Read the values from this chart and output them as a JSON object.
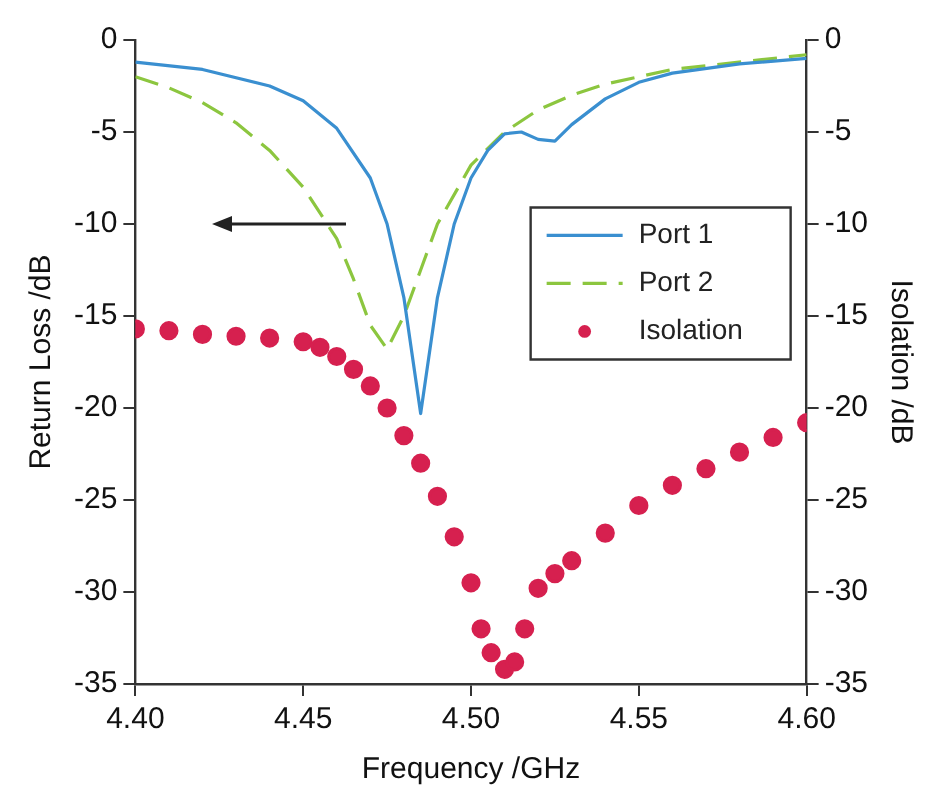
{
  "chart_data": {
    "type": "line",
    "xlabel": "Frequency /GHz",
    "ylabel": "Return Loss /dB",
    "y2label": "Isolation /dB",
    "xlim": [
      4.4,
      4.6
    ],
    "xticks": [
      {
        "value": 4.4,
        "label": "4.40"
      },
      {
        "value": 4.45,
        "label": "4.45"
      },
      {
        "value": 4.5,
        "label": "4.50"
      },
      {
        "value": 4.55,
        "label": "4.55"
      },
      {
        "value": 4.6,
        "label": "4.60"
      }
    ],
    "ylim": [
      -35,
      0
    ],
    "yticks": [
      -35,
      -30,
      -25,
      -20,
      -15,
      -10,
      -5,
      0
    ],
    "y2lim": [
      -35,
      0
    ],
    "y2ticks": [
      -35,
      -30,
      -25,
      -20,
      -15,
      -10,
      -5,
      0
    ],
    "grid": false,
    "legend": "right",
    "series": [
      {
        "name": "Port 1",
        "type": "line",
        "color": "#3a8fd0",
        "line_style": "solid",
        "marker": "none",
        "x": [
          4.4,
          4.42,
          4.44,
          4.45,
          4.46,
          4.47,
          4.475,
          4.48,
          4.485,
          4.49,
          4.495,
          4.5,
          4.505,
          4.51,
          4.515,
          4.52,
          4.525,
          4.53,
          4.54,
          4.55,
          4.56,
          4.58,
          4.6
        ],
        "values": [
          -1.2,
          -1.6,
          -2.5,
          -3.3,
          -4.8,
          -7.5,
          -10,
          -14,
          -20.3,
          -14,
          -10,
          -7.5,
          -6,
          -5.1,
          -5,
          -5.4,
          -5.5,
          -4.6,
          -3.2,
          -2.3,
          -1.8,
          -1.3,
          -1
        ]
      },
      {
        "name": "Port 2",
        "type": "line",
        "color": "#8cc63f",
        "line_style": "dashed",
        "marker": "none",
        "x": [
          4.4,
          4.41,
          4.42,
          4.43,
          4.44,
          4.45,
          4.46,
          4.465,
          4.47,
          4.475,
          4.48,
          4.485,
          4.49,
          4.5,
          4.51,
          4.52,
          4.53,
          4.54,
          4.56,
          4.6
        ],
        "values": [
          -2,
          -2.6,
          -3.4,
          -4.5,
          -6,
          -8,
          -10.8,
          -13,
          -15.5,
          -16.8,
          -15,
          -12.5,
          -10,
          -6.8,
          -5,
          -3.8,
          -3,
          -2.4,
          -1.6,
          -0.8
        ]
      },
      {
        "name": "Isolation",
        "type": "scatter",
        "axis": "y2",
        "color": "#d6204f",
        "marker": "circle",
        "x": [
          4.4,
          4.41,
          4.42,
          4.43,
          4.44,
          4.45,
          4.455,
          4.46,
          4.465,
          4.47,
          4.475,
          4.48,
          4.485,
          4.49,
          4.495,
          4.5,
          4.503,
          4.506,
          4.51,
          4.513,
          4.516,
          4.52,
          4.525,
          4.53,
          4.54,
          4.55,
          4.56,
          4.57,
          4.58,
          4.59,
          4.6
        ],
        "values": [
          -15.7,
          -15.8,
          -16,
          -16.1,
          -16.2,
          -16.4,
          -16.7,
          -17.2,
          -17.9,
          -18.8,
          -20,
          -21.5,
          -23,
          -24.8,
          -27,
          -29.5,
          -32,
          -33.3,
          -34.2,
          -33.8,
          -32,
          -29.8,
          -29,
          -28.3,
          -26.8,
          -25.3,
          -24.2,
          -23.3,
          -22.4,
          -21.6,
          -20.8
        ]
      }
    ]
  }
}
